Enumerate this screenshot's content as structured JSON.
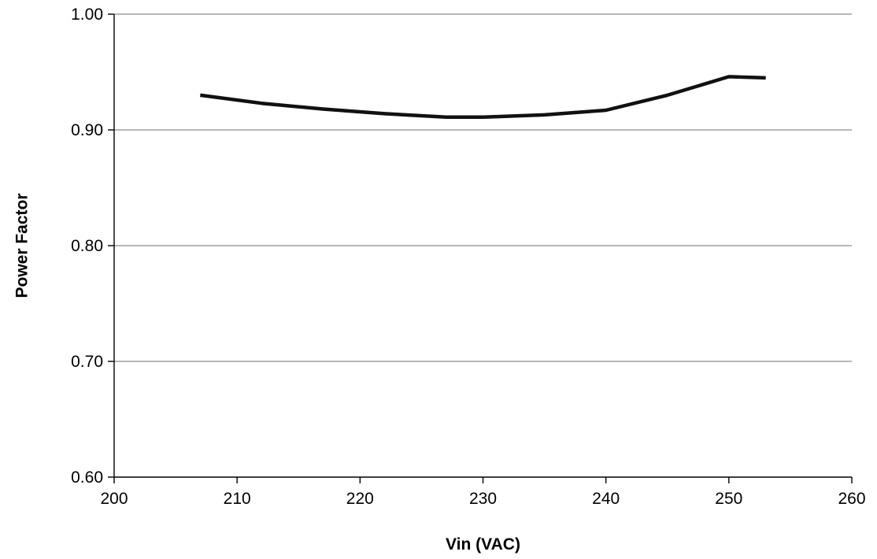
{
  "chart_data": {
    "type": "line",
    "title": "",
    "xlabel": "Vin (VAC)",
    "ylabel": "Power Factor",
    "xlim": [
      200,
      260
    ],
    "ylim": [
      0.6,
      1.0
    ],
    "x_ticks": [
      200,
      210,
      220,
      230,
      240,
      250,
      260
    ],
    "x_tick_labels": [
      "200",
      "210",
      "220",
      "230",
      "240",
      "250",
      "260"
    ],
    "y_ticks": [
      0.6,
      0.7,
      0.8,
      0.9,
      1.0
    ],
    "y_tick_labels": [
      "0.60",
      "0.70",
      "0.80",
      "0.90",
      "1.00"
    ],
    "grid": "horizontal",
    "legend": "none",
    "series": [
      {
        "color": "#111111",
        "x": [
          207,
          212,
          217,
          222,
          227,
          230,
          235,
          240,
          245,
          250,
          253
        ],
        "y": [
          0.93,
          0.923,
          0.918,
          0.914,
          0.911,
          0.911,
          0.913,
          0.917,
          0.93,
          0.946,
          0.945
        ]
      }
    ]
  }
}
